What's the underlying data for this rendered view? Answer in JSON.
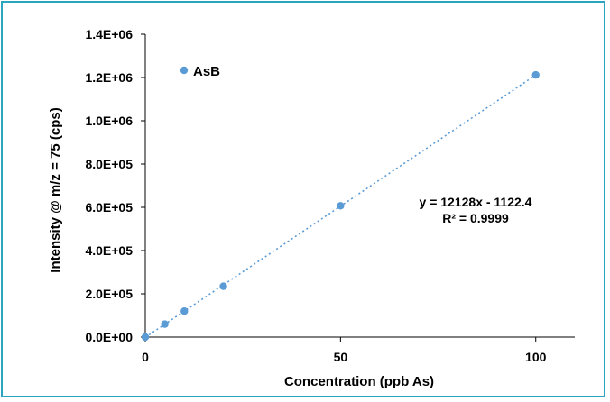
{
  "chart_data": {
    "type": "scatter",
    "xlabel": "Concentration (ppb As)",
    "ylabel": "Intensity @ m/z = 75 (cps)",
    "xlim": [
      0,
      110
    ],
    "ylim": [
      0,
      1400000
    ],
    "x_ticks": [
      {
        "value": 0,
        "label": "0"
      },
      {
        "value": 50,
        "label": "50"
      },
      {
        "value": 100,
        "label": "100"
      }
    ],
    "y_ticks": [
      {
        "value": 0,
        "label": "0.0E+00"
      },
      {
        "value": 200000,
        "label": "2.0E+05"
      },
      {
        "value": 400000,
        "label": "4.0E+05"
      },
      {
        "value": 600000,
        "label": "6.0E+05"
      },
      {
        "value": 800000,
        "label": "8.0E+05"
      },
      {
        "value": 1000000,
        "label": "1.0E+06"
      },
      {
        "value": 1200000,
        "label": "1.2E+06"
      },
      {
        "value": 1400000,
        "label": "1.4E+06"
      }
    ],
    "grid": false,
    "legend_position": "top-left",
    "series": [
      {
        "name": "AsB",
        "color": "#5b9bd5",
        "x": [
          0,
          5,
          10,
          20,
          50,
          100
        ],
        "y": [
          0,
          60000,
          120000,
          235000,
          607000,
          1212000
        ]
      }
    ],
    "trendline": {
      "slope": 12128,
      "intercept": -1122.4,
      "style": "dotted",
      "color": "#5b9bd5",
      "equation_label": "y = 12128x - 1122.4",
      "r2_label": "R² = 0.9999"
    }
  }
}
